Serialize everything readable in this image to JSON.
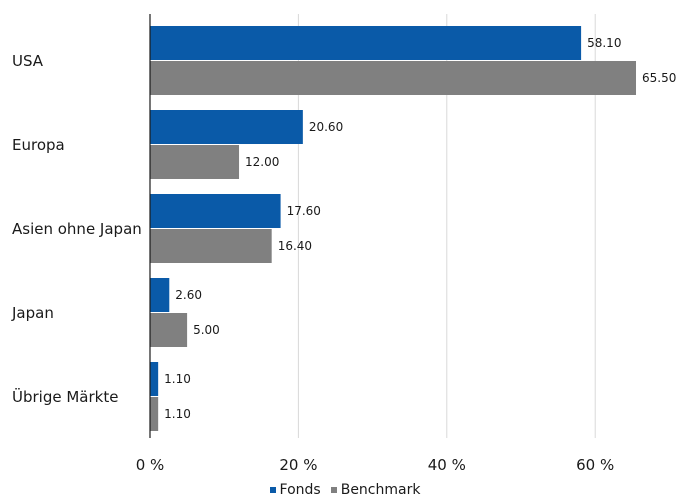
{
  "chart_data": {
    "type": "bar",
    "orientation": "horizontal",
    "categories": [
      "USA",
      "Europa",
      "Asien ohne Japan",
      "Japan",
      "Übrige Märkte"
    ],
    "series": [
      {
        "name": "Fonds",
        "color": "#0a5aa8",
        "values": [
          58.1,
          20.6,
          17.6,
          2.6,
          1.1
        ],
        "labels": [
          "58.10",
          "20.60",
          "17.60",
          "2.60",
          "1.10"
        ]
      },
      {
        "name": "Benchmark",
        "color": "#808080",
        "values": [
          65.5,
          12.0,
          16.4,
          5.0,
          1.1
        ],
        "labels": [
          "65.50",
          "12.00",
          "16.40",
          "5.00",
          "1.10"
        ]
      }
    ],
    "xlim": [
      0,
      70
    ],
    "xticks": [
      0,
      20,
      40,
      60
    ],
    "xtick_labels": [
      "0 %",
      "20 %",
      "40 %",
      "60 %"
    ],
    "grid": true,
    "legend_position": "bottom"
  }
}
